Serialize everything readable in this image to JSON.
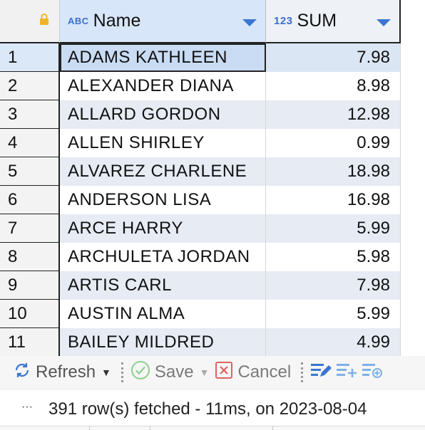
{
  "grid": {
    "columns": [
      {
        "type_tag": "ABC",
        "label": "Name"
      },
      {
        "type_tag": "123",
        "label": "SUM"
      }
    ],
    "rows": [
      {
        "num": "1",
        "name": "ADAMS KATHLEEN",
        "sum": "7.98"
      },
      {
        "num": "2",
        "name": "ALEXANDER DIANA",
        "sum": "8.98"
      },
      {
        "num": "3",
        "name": "ALLARD GORDON",
        "sum": "12.98"
      },
      {
        "num": "4",
        "name": "ALLEN SHIRLEY",
        "sum": "0.99"
      },
      {
        "num": "5",
        "name": "ALVAREZ CHARLENE",
        "sum": "18.98"
      },
      {
        "num": "6",
        "name": "ANDERSON LISA",
        "sum": "16.98"
      },
      {
        "num": "7",
        "name": "ARCE HARRY",
        "sum": "5.99"
      },
      {
        "num": "8",
        "name": "ARCHULETA JORDAN",
        "sum": "5.98"
      },
      {
        "num": "9",
        "name": "ARTIS CARL",
        "sum": "7.98"
      },
      {
        "num": "10",
        "name": "AUSTIN ALMA",
        "sum": "5.99"
      },
      {
        "num": "11",
        "name": "BAILEY MILDRED",
        "sum": "4.99"
      }
    ]
  },
  "toolbar": {
    "refresh_label": "Refresh",
    "save_label": "Save",
    "cancel_label": "Cancel",
    "icons": [
      "refresh-icon",
      "save-check-icon",
      "cancel-x-icon",
      "edit-row-icon",
      "add-row-icon",
      "copy-row-icon"
    ]
  },
  "status": {
    "dots": "···",
    "text": "391 row(s) fetched - 11ms, on 2023-08-04"
  },
  "colors": {
    "accent": "#3a76d0",
    "header_selected": "#d7e6f8",
    "row_alt": "#e6ebf4",
    "cancel_red": "#e06060",
    "save_green": "#8fcf8f"
  }
}
